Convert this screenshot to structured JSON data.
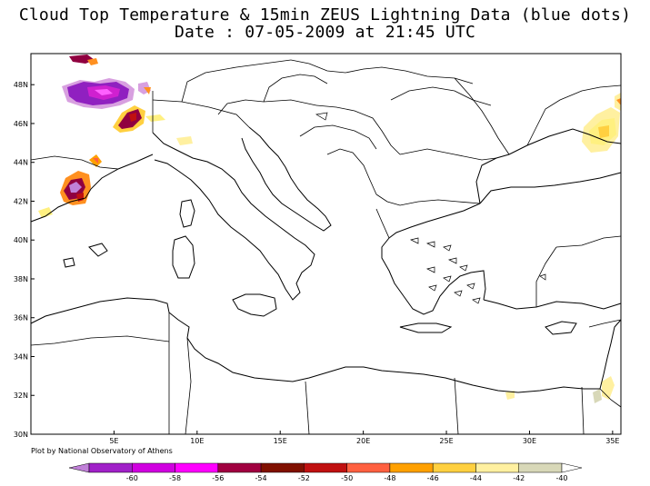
{
  "title": {
    "line1": "Cloud Top Temperature & 15min ZEUS Lightning Data (blue dots)",
    "line2": "Date : 07-05-2009 at 21:45 UTC"
  },
  "axes": {
    "lat_labels": [
      "48N",
      "46N",
      "44N",
      "42N",
      "40N",
      "38N",
      "36N",
      "34N",
      "32N",
      "30N"
    ],
    "lat_values": [
      48,
      46,
      44,
      42,
      40,
      38,
      36,
      34,
      32,
      30
    ],
    "lon_labels": [
      "5E",
      "10E",
      "15E",
      "20E",
      "25E",
      "30E",
      "35E"
    ],
    "lon_values": [
      5,
      10,
      15,
      20,
      25,
      30,
      35
    ],
    "lon_range": [
      0,
      35.5
    ],
    "lat_range": [
      30,
      49.6
    ]
  },
  "credit": "Plot by National Observatory of Athens",
  "colorbar": {
    "labels": [
      "-60",
      "-58",
      "-56",
      "-54",
      "-52",
      "-50",
      "-48",
      "-46",
      "-44",
      "-42",
      "-40"
    ],
    "colors": [
      "#c080d8",
      "#a020c8",
      "#d000e0",
      "#ff00ff",
      "#a00040",
      "#801000",
      "#c01010",
      "#ff6040",
      "#ffa000",
      "#ffd040",
      "#fff0a0",
      "#d8d8b8",
      "#ffffff"
    ]
  },
  "cloud_colors": {
    "violet": "#9020c0",
    "magenta": "#d020d0",
    "maroon": "#900040",
    "red": "#e03020",
    "orange": "#ff9020",
    "yellow": "#fff080"
  }
}
